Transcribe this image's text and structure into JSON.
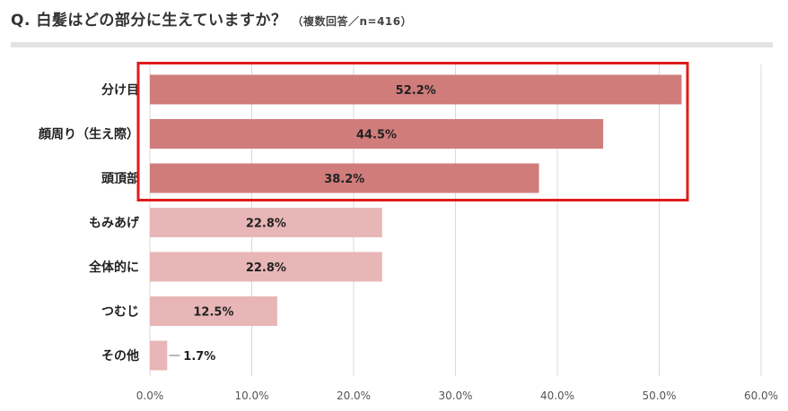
{
  "header": {
    "title": "Q. 白髪はどの部分に生えていますか？",
    "subtitle": "（複数回答／n=416）"
  },
  "colors": {
    "highlight_bar": "#d07c7b",
    "normal_bar": "#e8b6b6",
    "highlight_box": "#e01b1b",
    "grid": "#d9d9d9"
  },
  "chart_data": {
    "type": "bar",
    "orientation": "horizontal",
    "categories": [
      "分け目",
      "顔周り（生え際）",
      "頭頂部",
      "もみあげ",
      "全体的に",
      "つむじ",
      "その他"
    ],
    "values": [
      52.2,
      44.5,
      38.2,
      22.8,
      22.8,
      12.5,
      1.7
    ],
    "value_labels": [
      "52.2%",
      "44.5%",
      "38.2%",
      "22.8%",
      "22.8%",
      "12.5%",
      "1.7%"
    ],
    "highlighted": [
      true,
      true,
      true,
      false,
      false,
      false,
      false
    ],
    "xlim": [
      0,
      60
    ],
    "x_ticks": [
      0,
      10,
      20,
      30,
      40,
      50,
      60
    ],
    "x_tick_labels": [
      "0.0%",
      "10.0%",
      "20.0%",
      "30.0%",
      "40.0%",
      "50.0%",
      "60.0%"
    ],
    "grid": true,
    "title": "Q. 白髪はどの部分に生えていますか？",
    "xlabel": "",
    "ylabel": ""
  }
}
